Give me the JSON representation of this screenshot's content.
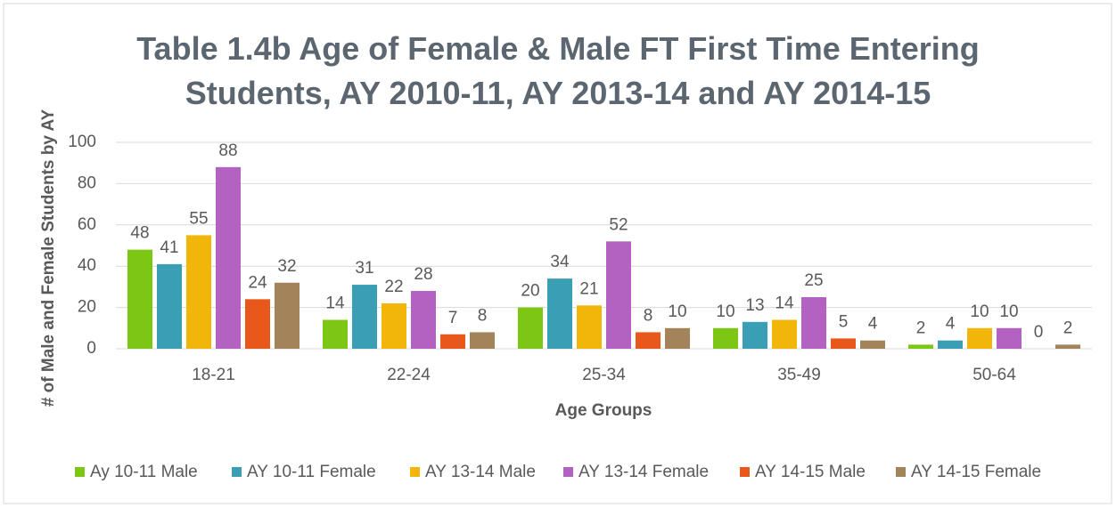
{
  "chart_data": {
    "type": "bar",
    "title": "Table 1.4b Age of Female & Male FT First Time Entering Students, AY 2010-11, AY 2013-14 and AY 2014-15",
    "xlabel": "Age Groups",
    "ylabel": "# of Male and Female Students by AY",
    "categories": [
      "18-21",
      "22-24",
      "25-34",
      "35-49",
      "50-64"
    ],
    "series": [
      {
        "name": "Ay 10-11 Male",
        "color": "#7cc614",
        "values": [
          48,
          14,
          20,
          10,
          2
        ]
      },
      {
        "name": "AY 10-11 Female",
        "color": "#3a9fb4",
        "values": [
          41,
          31,
          34,
          13,
          4
        ]
      },
      {
        "name": "AY 13-14 Male",
        "color": "#f2b50a",
        "values": [
          55,
          22,
          21,
          14,
          10
        ]
      },
      {
        "name": "AY 13-14 Female",
        "color": "#b462c2",
        "values": [
          88,
          28,
          52,
          25,
          10
        ]
      },
      {
        "name": "AY 14-15 Male",
        "color": "#e8581a",
        "values": [
          24,
          7,
          8,
          5,
          0
        ]
      },
      {
        "name": "AY 14-15 Female",
        "color": "#a3845a",
        "values": [
          32,
          8,
          10,
          4,
          2
        ]
      }
    ],
    "ylim": [
      0,
      100
    ],
    "yticks": [
      0,
      20,
      40,
      60,
      80,
      100
    ],
    "grid": true,
    "legend": "bottom"
  }
}
